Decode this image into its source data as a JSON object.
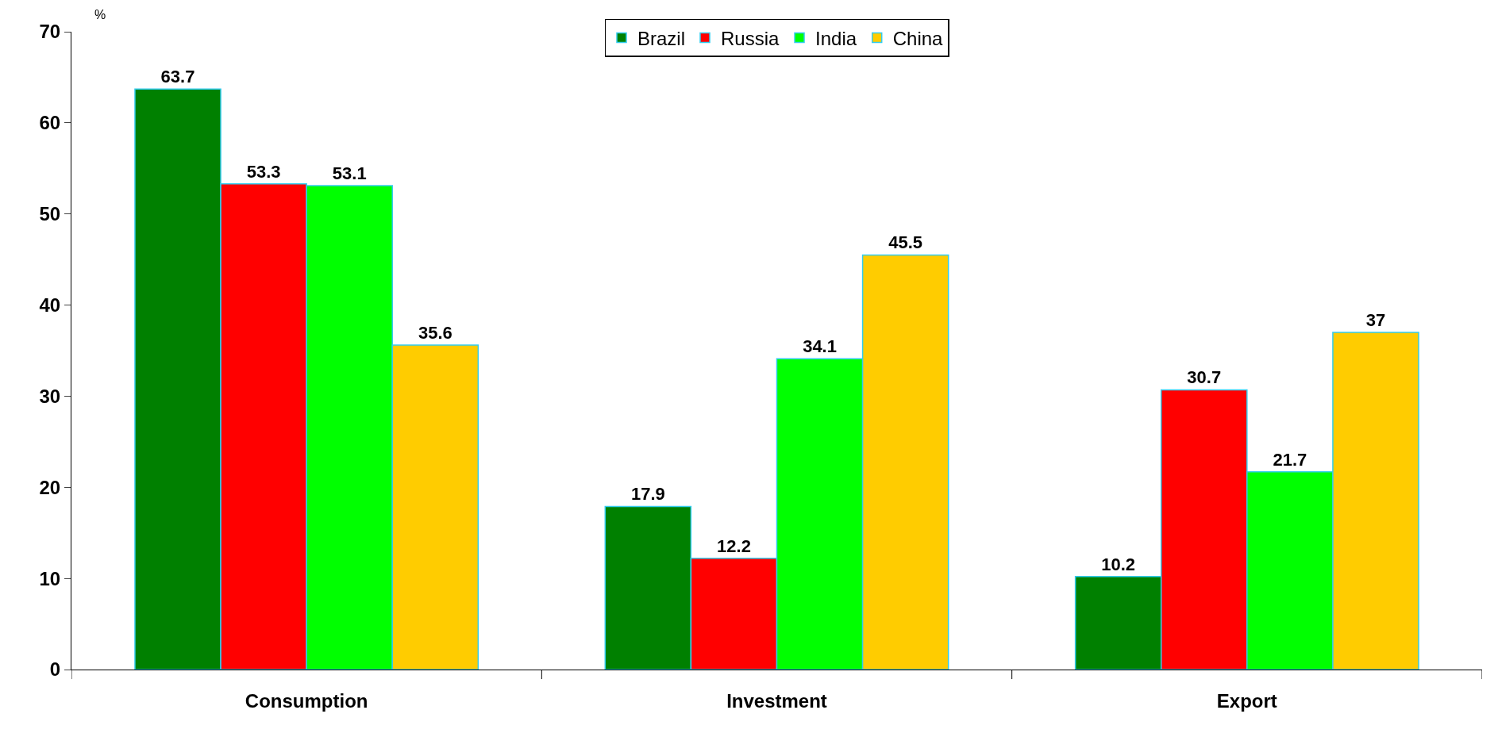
{
  "chart_data": {
    "type": "bar",
    "ylabel": "%",
    "categories": [
      "Consumption",
      "Investment",
      "Export"
    ],
    "series": [
      {
        "name": "Brazil",
        "color": "#008000",
        "values": [
          63.7,
          17.9,
          10.2
        ]
      },
      {
        "name": "Russia",
        "color": "#ff0000",
        "values": [
          53.3,
          12.2,
          30.7
        ]
      },
      {
        "name": "India",
        "color": "#00ff00",
        "values": [
          53.1,
          34.1,
          21.7
        ]
      },
      {
        "name": "China",
        "color": "#ffcc00",
        "values": [
          35.6,
          45.5,
          37
        ]
      }
    ],
    "ylim": [
      0,
      70
    ],
    "yticks": [
      0,
      10,
      20,
      30,
      40,
      50,
      60,
      70
    ],
    "data_labels": true,
    "legend": "top"
  }
}
